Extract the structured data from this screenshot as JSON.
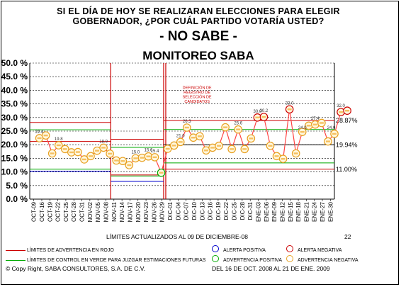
{
  "header": {
    "line1": "SI EL DÍA DE HOY SE REALIZARAN ELECCIONES PARA ELEGIR",
    "line2": "GOBERNADOR, ¿POR CUÁL PARTIDO VOTARÍA USTED?",
    "line3": "- NO SABE -",
    "line4": "MONITOREO SABA"
  },
  "footer": {
    "limits": "LÍMITES ACTUALIZADOS AL 09 DE DICIEMBRE-08",
    "number": "22",
    "legend_red": "LÍMITES DE ADVERTENCIA EN ROJO",
    "legend_green": "LÍMITES DE CONTROL EN VERDE PARA JUZGAR ESTIMACIONES FUTURAS",
    "alert_pos": "ALERTA POSITIVA",
    "alert_neg": "ALERTA NEGATIVA",
    "adv_pos": "ADVERTENCIA POSITIVA",
    "adv_neg": "ADVERTENCIA NEGATIVA",
    "copyright": "© Copy Right, SABA CONSULTORES, S.A. DE C.V.",
    "period": "DEL 16 DE OCT. 2008 AL 21 DE ENE. 2009"
  },
  "colors": {
    "red": "#cc0000",
    "green": "#00aa00",
    "blue": "#0000cc",
    "orange": "#e8a020",
    "line": "#ff4444"
  },
  "chart_data": {
    "type": "line",
    "ylim": [
      0,
      50
    ],
    "yticks": [
      "0.0 %",
      "5.0 %",
      "10.0 %",
      "15.0 %",
      "20.0 %",
      "25.0 %",
      "30.0 %",
      "35.0 %",
      "40.0 %",
      "45.0 %",
      "50.0 %"
    ],
    "categories": [
      "OCT-09",
      "OCT-16",
      "OCT-19",
      "OCT-22",
      "OCT-25",
      "OCT-28",
      "OCT-31",
      "NOV-02",
      "NOV-05",
      "NOV-08",
      "NOV-11",
      "NOV-14",
      "NOV-17",
      "NOV-20",
      "NOV-23",
      "NOV-26",
      "NOV-29",
      "DIC-01",
      "DIC-04",
      "DIC-07",
      "DIC-10",
      "DIC-13",
      "DIC-16",
      "DIC-19",
      "DIC-22",
      "DIC-25",
      "DIC-28",
      "DIC-31",
      "ENE-03",
      "ENE-06",
      "ENE-09",
      "ENE-12",
      "ENE-15",
      "ENE-18",
      "ENE-21",
      "ENE-24",
      "ENE-27",
      "ENE-30"
    ],
    "series": [
      {
        "values": [
          [
            1.2,
            22.4
          ],
          [
            2.0,
            23.4
          ],
          [
            2.8,
            16.8
          ],
          [
            3.6,
            19.8
          ],
          [
            4.4,
            18.4
          ],
          [
            5.2,
            17.2
          ],
          [
            6.0,
            17.3
          ],
          [
            6.8,
            14.6
          ],
          [
            7.6,
            15.8
          ],
          [
            8.4,
            17.8
          ],
          [
            9.2,
            18.9
          ],
          [
            10.0,
            16.7
          ],
          [
            10.8,
            14.2
          ],
          [
            11.6,
            14.0
          ],
          [
            12.4,
            12.5
          ],
          [
            13.2,
            15.0
          ],
          [
            14.0,
            15.2
          ],
          [
            14.8,
            15.7
          ],
          [
            15.6,
            15.4
          ],
          [
            16.4,
            9.7
          ],
          [
            17.2,
            18.5
          ],
          [
            18.0,
            19.7
          ],
          [
            18.8,
            21.0
          ],
          [
            19.6,
            26.3
          ],
          [
            20.4,
            22.6
          ],
          [
            21.2,
            23.1
          ],
          [
            22.0,
            17.9
          ],
          [
            22.8,
            18.9
          ],
          [
            23.6,
            19.6
          ],
          [
            24.4,
            26.4
          ],
          [
            25.2,
            18.4
          ],
          [
            26.0,
            25.6
          ],
          [
            26.8,
            18.4
          ],
          [
            27.6,
            22.3
          ],
          [
            28.4,
            30.0
          ],
          [
            29.2,
            30.2
          ],
          [
            30.0,
            19.6
          ],
          [
            30.8,
            15.8
          ],
          [
            31.6,
            14.8
          ],
          [
            32.4,
            33.0
          ],
          [
            33.2,
            16.8
          ],
          [
            34.0,
            24.7
          ],
          [
            34.8,
            27.0
          ],
          [
            35.6,
            27.4
          ],
          [
            36.4,
            28.0
          ],
          [
            37.2,
            21.2
          ],
          [
            38.0,
            24.0
          ],
          [
            38.8,
            32.0
          ],
          [
            39.6,
            32.5
          ]
        ]
      }
    ],
    "labels": [
      "22.4",
      "19.8",
      "18.9",
      "15.0",
      "15.4",
      "15.6",
      "21.0",
      "26.3",
      "25.6",
      "30.0",
      "30.2",
      "33.0",
      "24.0",
      "27.4",
      "32.0",
      "24.0"
    ],
    "limits": {
      "red": [
        {
          "from": 0,
          "to": 10.1,
          "upper": 28.2,
          "lower": 21.2
        },
        {
          "from": 10.1,
          "to": 16.7,
          "upper": 22.0,
          "lower": 8.9
        },
        {
          "from": 16.7,
          "to": 38.0,
          "upper": 28.87,
          "lower": 11.0
        }
      ],
      "green": [
        {
          "from": 0,
          "to": 10.1,
          "upper": 25.5,
          "lower": 11.0
        },
        {
          "from": 10.1,
          "to": 16.7,
          "upper": 19.0,
          "lower": 8.5
        },
        {
          "from": 16.7,
          "to": 38.0,
          "upper": 25.6,
          "lower": 13.3
        }
      ],
      "blue": [
        {
          "from": 0,
          "to": 10.1,
          "value": 10.3
        },
        {
          "from": 10.1,
          "to": 16.7,
          "value": 6.5
        }
      ],
      "black": [
        {
          "from": 16.7,
          "to": 38.0,
          "value": 19.94
        }
      ]
    },
    "right_labels": [
      "28.87%",
      "19.94%",
      "11.00%"
    ],
    "annotation": "DEFINICIÓN DE REGISTRO DE SELECCIÓN DE CANDIDATOS"
  }
}
